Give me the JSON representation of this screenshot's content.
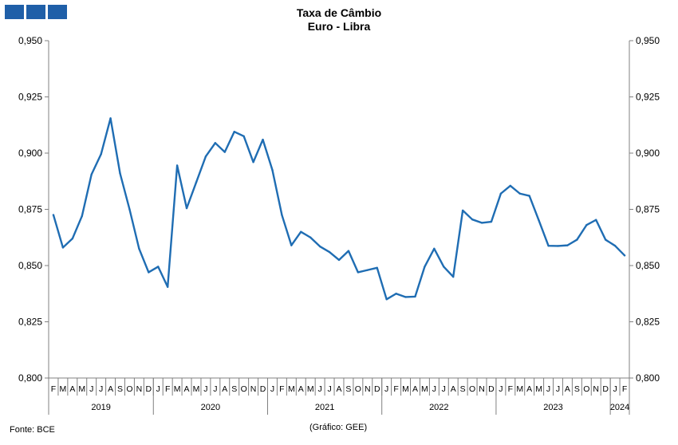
{
  "logo": {
    "blocks": 3,
    "color": "#1f5fa8"
  },
  "footer": {
    "source": "Fonte: BCE",
    "credit": "(Gráfico: GEE)"
  },
  "chart_data": {
    "type": "line",
    "title": "Taxa de Câmbio",
    "subtitle": "Euro - Libra",
    "xlabel": "",
    "ylabel": "",
    "ylim": [
      0.8,
      0.95
    ],
    "y_ticks": [
      "0,800",
      "0,825",
      "0,850",
      "0,875",
      "0,900",
      "0,925",
      "0,950"
    ],
    "y_tick_values": [
      0.8,
      0.825,
      0.85,
      0.875,
      0.9,
      0.925,
      0.95
    ],
    "grid": false,
    "axes": "left-and-right",
    "series_color": "#1f6db3",
    "x": [
      "F",
      "M",
      "A",
      "M",
      "J",
      "J",
      "A",
      "S",
      "O",
      "N",
      "D",
      "J",
      "F",
      "M",
      "A",
      "M",
      "J",
      "J",
      "A",
      "S",
      "O",
      "N",
      "D",
      "J",
      "F",
      "M",
      "A",
      "M",
      "J",
      "J",
      "A",
      "S",
      "O",
      "N",
      "D",
      "J",
      "F",
      "M",
      "A",
      "M",
      "J",
      "J",
      "A",
      "S",
      "O",
      "N",
      "D",
      "J",
      "F",
      "M",
      "A",
      "M",
      "J",
      "J",
      "A",
      "S",
      "O",
      "N",
      "D",
      "J",
      "F"
    ],
    "years": [
      {
        "label": "2019",
        "start": 0,
        "count": 11
      },
      {
        "label": "2020",
        "start": 11,
        "count": 12
      },
      {
        "label": "2021",
        "start": 23,
        "count": 12
      },
      {
        "label": "2022",
        "start": 35,
        "count": 12
      },
      {
        "label": "2023",
        "start": 47,
        "count": 12
      },
      {
        "label": "2024",
        "start": 59,
        "count": 2
      }
    ],
    "values": [
      0.8725,
      0.858,
      0.862,
      0.872,
      0.8905,
      0.8995,
      0.9155,
      0.891,
      0.875,
      0.8575,
      0.847,
      0.8495,
      0.8405,
      0.8945,
      0.8755,
      0.887,
      0.8985,
      0.9045,
      0.9005,
      0.9095,
      0.9075,
      0.896,
      0.906,
      0.8925,
      0.8725,
      0.859,
      0.865,
      0.8625,
      0.8585,
      0.856,
      0.8525,
      0.8565,
      0.847,
      0.848,
      0.849,
      0.835,
      0.8375,
      0.836,
      0.8362,
      0.8495,
      0.8575,
      0.8495,
      0.845,
      0.8745,
      0.8705,
      0.869,
      0.8695,
      0.882,
      0.8855,
      0.882,
      0.881,
      0.87,
      0.8588,
      0.8587,
      0.859,
      0.8615,
      0.868,
      0.8703,
      0.8615,
      0.8588,
      0.8545
    ]
  }
}
